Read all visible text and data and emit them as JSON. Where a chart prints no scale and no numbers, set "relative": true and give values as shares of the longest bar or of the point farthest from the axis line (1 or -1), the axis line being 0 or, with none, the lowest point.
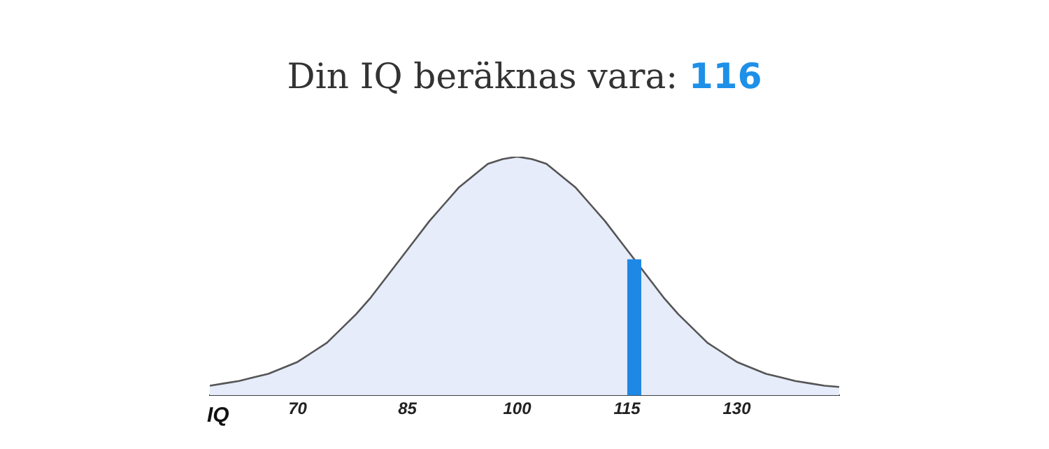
{
  "chart_data": {
    "type": "area",
    "title": "Din IQ beräknas vara:",
    "annotations": [
      "116"
    ],
    "xlabel": "IQ",
    "relative": true,
    "x": [
      58,
      60,
      62,
      64,
      66,
      68,
      70,
      72,
      74,
      76,
      78,
      80,
      82,
      84,
      86,
      88,
      90,
      92,
      94,
      96,
      98,
      100,
      102,
      104,
      106,
      108,
      110,
      112,
      114,
      116,
      118,
      120,
      122,
      124,
      126,
      128,
      130,
      132,
      134,
      136,
      138,
      140,
      142,
      144
    ],
    "series": [
      {
        "color": "#e6ecfa",
        "values": [
          0.04,
          0.05,
          0.06,
          0.075,
          0.09,
          0.115,
          0.14,
          0.18,
          0.22,
          0.28,
          0.34,
          0.41,
          0.49,
          0.57,
          0.65,
          0.73,
          0.8,
          0.87,
          0.92,
          0.97,
          0.99,
          1,
          0.99,
          0.97,
          0.92,
          0.87,
          0.8,
          0.73,
          0.65,
          0.57,
          0.49,
          0.41,
          0.34,
          0.28,
          0.22,
          0.18,
          0.14,
          0.115,
          0.09,
          0.075,
          0.06,
          0.05,
          0.04,
          0.035
        ]
      }
    ],
    "xlim": [
      58,
      144
    ],
    "xticks": [
      70,
      85,
      100,
      115,
      130
    ],
    "tick_labels": "x",
    "ref_lines": [
      {
        "axis": "x",
        "value": 116,
        "color": "#1e88e5"
      }
    ],
    "marker": "none",
    "line_style": "solid",
    "grid": false,
    "legend": false
  }
}
